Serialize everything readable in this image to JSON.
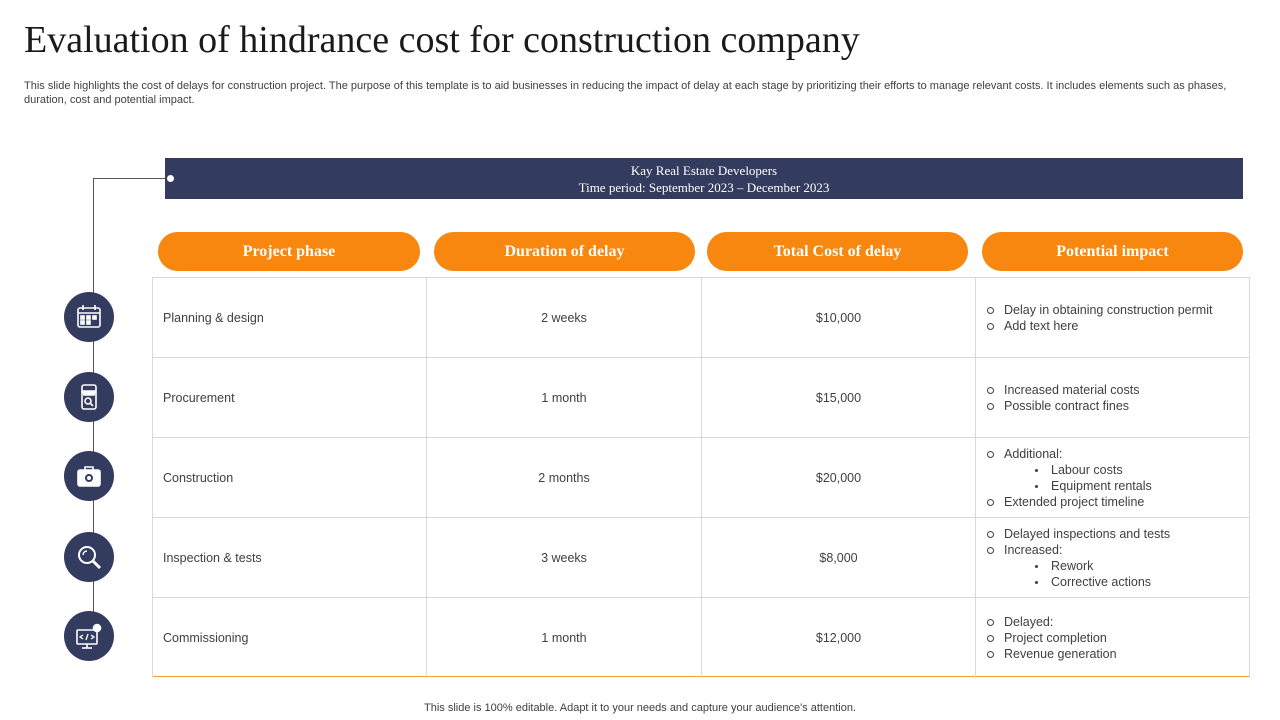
{
  "title": "Evaluation of hindrance cost for construction company",
  "subtitle": "This slide highlights the cost of delays for construction project. The purpose of this template is to aid businesses in reducing the impact of delay at each stage by prioritizing their efforts to manage relevant costs. It includes elements such as phases, duration, cost and potential impact.",
  "banner": {
    "line1": "Kay Real Estate Developers",
    "line2": "Time period: September 2023 – December 2023"
  },
  "headers": [
    "Project phase",
    "Duration of delay",
    "Total Cost of delay",
    "Potential impact"
  ],
  "rows": [
    {
      "icon": "calendar-icon",
      "phase": "Planning & design",
      "duration": "2 weeks",
      "cost": "$10,000",
      "impact": [
        {
          "text": "Delay in obtaining construction permit",
          "sub": []
        },
        {
          "text": "Add text here",
          "sub": []
        }
      ]
    },
    {
      "icon": "mobile-shop-icon",
      "phase": "Procurement",
      "duration": "1 month",
      "cost": "$15,000",
      "impact": [
        {
          "text": "Increased  material costs",
          "sub": []
        },
        {
          "text": "Possible contract fines",
          "sub": []
        }
      ]
    },
    {
      "icon": "toolbox-gear-icon",
      "phase": "Construction",
      "duration": "2 months",
      "cost": "$20,000",
      "impact": [
        {
          "text": "Additional:",
          "sub": [
            "Labour  costs",
            "Equipment  rentals"
          ]
        },
        {
          "text": "Extended project timeline",
          "sub": []
        }
      ]
    },
    {
      "icon": "magnifier-icon",
      "phase": "Inspection & tests",
      "duration": "3 weeks",
      "cost": "$8,000",
      "impact": [
        {
          "text": "Delayed inspections and tests",
          "sub": []
        },
        {
          "text": "Increased:",
          "sub": [
            "Rework",
            "Corrective  actions"
          ]
        }
      ]
    },
    {
      "icon": "monitor-code-gear-icon",
      "phase": "Commissioning",
      "duration": "1 month",
      "cost": "$12,000",
      "impact": [
        {
          "text": "Delayed:",
          "sub": []
        },
        {
          "text": "Project completion",
          "sub": []
        },
        {
          "text": "Revenue  generation",
          "sub": []
        }
      ]
    }
  ],
  "footer": "This slide is 100% editable. Adapt it to your needs and capture your audience's attention.",
  "colors": {
    "navy": "#333b5f",
    "orange": "#f7870f"
  }
}
